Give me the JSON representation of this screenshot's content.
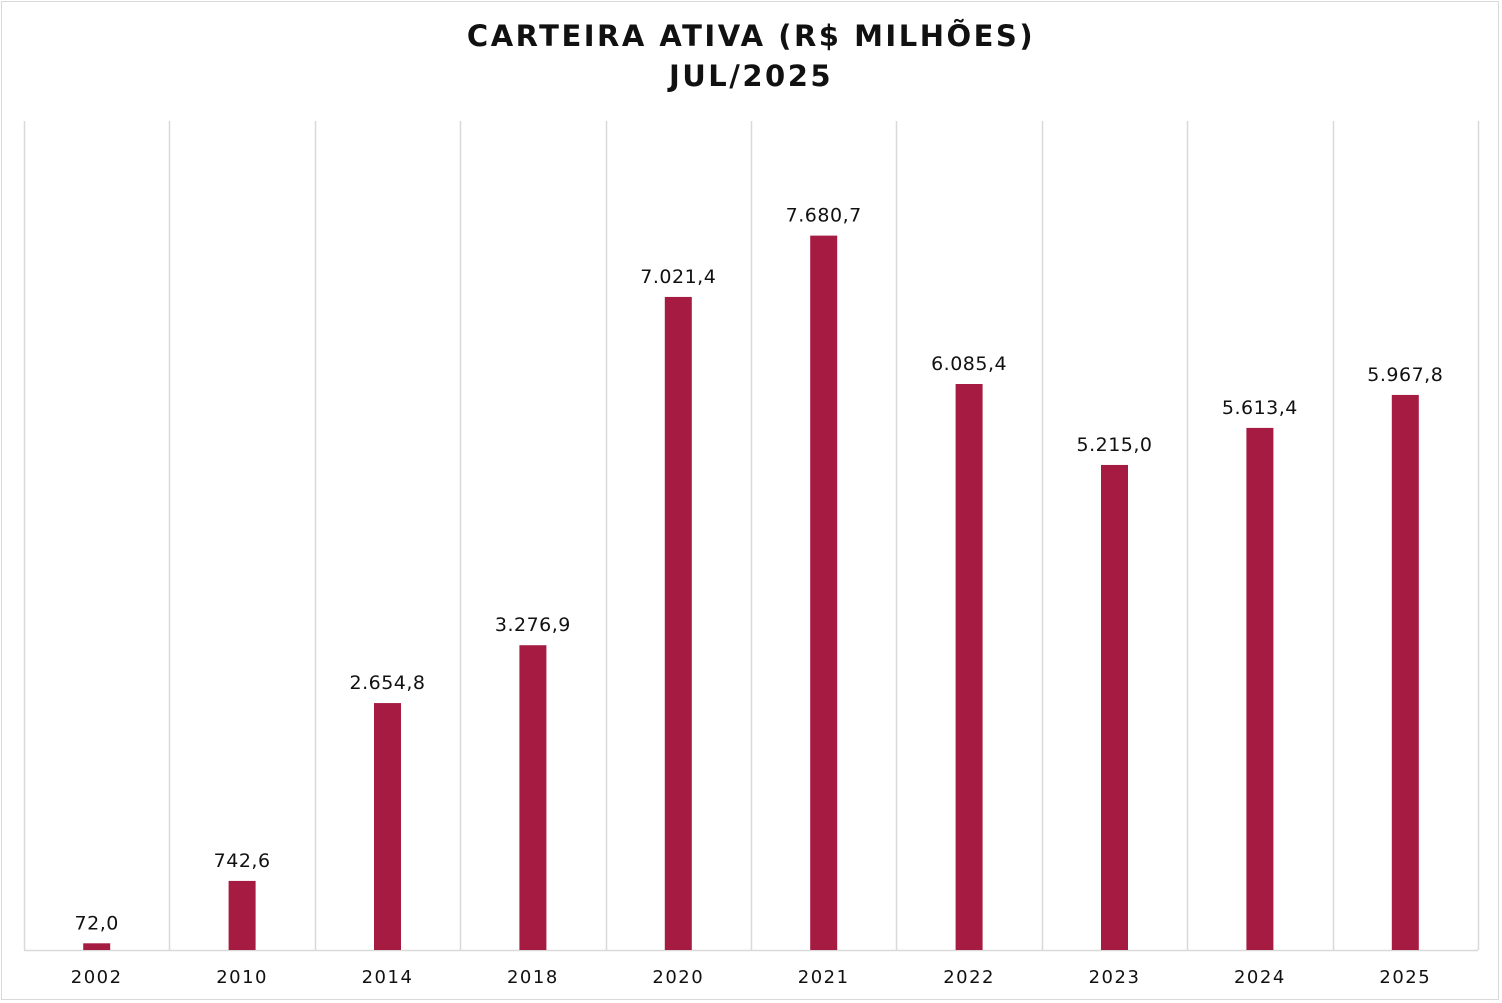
{
  "chart_data": {
    "type": "bar",
    "title": "CARTEIRA ATIVA (R$ MILHÕES)",
    "subtitle": "JUL/2025",
    "xlabel": "",
    "ylabel": "",
    "categories": [
      "2002",
      "2010",
      "2014",
      "2018",
      "2020",
      "2021",
      "2022",
      "2023",
      "2024",
      "2025"
    ],
    "values": [
      72.0,
      742.6,
      2654.8,
      3276.9,
      7021.4,
      7680.7,
      6085.4,
      5215.0,
      5613.4,
      5967.8
    ],
    "value_labels": [
      "72,0",
      "742,6",
      "2.654,8",
      "3.276,9",
      "7.021,4",
      "7.680,7",
      "6.085,4",
      "5.215,0",
      "5.613,4",
      "5.967,8"
    ],
    "ylim": [
      0,
      8913
    ],
    "grid": "vertical",
    "legend": "none",
    "bar_color": "#a61b41",
    "grid_color": "#d9d9d9"
  }
}
